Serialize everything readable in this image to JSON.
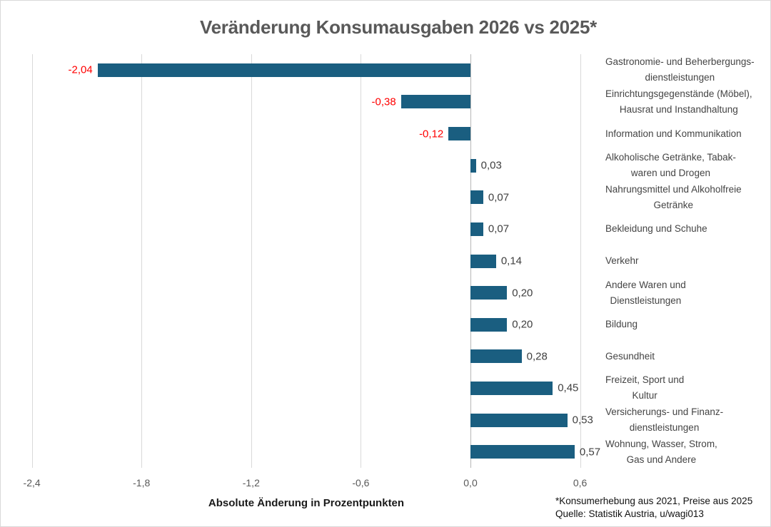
{
  "window": {
    "background": "#ffffff",
    "border_color": "#d9d9d9"
  },
  "chart_data": {
    "type": "bar",
    "orientation": "horizontal",
    "title": "Veränderung Konsumausgaben 2026 vs 2025*",
    "xlabel": "Absolute Änderung in Prozentpunkten",
    "xlim": [
      -2.4,
      0.72
    ],
    "x_ticks": [
      -2.4,
      -1.8,
      -1.2,
      -0.6,
      0.0,
      0.6
    ],
    "x_tick_labels": [
      "-2,4",
      "-1,8",
      "-1,2",
      "-0,6",
      "0,0",
      "0,6"
    ],
    "grid": true,
    "legend": "none",
    "categories": [
      "Gastronomie- und Beherbergungsdienstleistungen",
      "Einrichtungsgegenstände (Möbel), Hausrat und Instandhaltung",
      "Information und Kommunikation",
      "Alkoholische Getränke, Tabakwaren und Drogen",
      "Nahrungsmittel und Alkoholfreie Getränke",
      "Bekleidung und Schuhe",
      "Verkehr",
      "Andere Waren und Dienstleistungen",
      "Bildung",
      "Gesundheit",
      "Freizeit, Sport und Kultur",
      "Versicherungs- und Finanzdienstleistungen",
      "Wohnung, Wasser, Strom, Gas und Andere"
    ],
    "category_lines": [
      [
        "Gastronomie- und Beherbergungs-",
        "dienstleistungen"
      ],
      [
        "Einrichtungsgegenstände (Möbel),",
        "Hausrat und Instandhaltung"
      ],
      [
        "Information und Kommunikation"
      ],
      [
        "Alkoholische Getränke, Tabak-",
        "waren und Drogen"
      ],
      [
        "Nahrungsmittel und Alkoholfreie",
        "Getränke"
      ],
      [
        "Bekleidung und Schuhe"
      ],
      [
        "Verkehr"
      ],
      [
        "Andere Waren und",
        "Dienstleistungen"
      ],
      [
        "Bildung"
      ],
      [
        "Gesundheit"
      ],
      [
        "Freizeit, Sport und",
        "Kultur"
      ],
      [
        "Versicherungs- und Finanz-",
        "dienstleistungen"
      ],
      [
        "Wohnung, Wasser, Strom,",
        "Gas und Andere"
      ]
    ],
    "values": [
      -2.04,
      -0.38,
      -0.12,
      0.03,
      0.07,
      0.07,
      0.14,
      0.2,
      0.2,
      0.28,
      0.45,
      0.53,
      0.57
    ],
    "value_labels": [
      "-2,04",
      "-0,38",
      "-0,12",
      "0,03",
      "0,07",
      "0,07",
      "0,14",
      "0,20",
      "0,20",
      "0,28",
      "0,45",
      "0,53",
      "0,57"
    ],
    "bar_color": "#1a5e80",
    "negative_label_color": "#ff0000",
    "positive_label_color": "#3f3f3f",
    "gridline_color": "#d9d9d9",
    "zero_line_color": "#b7b7b7"
  },
  "footnote": {
    "line1": "*Konsumerhebung aus 2021, Preise aus 2025",
    "line2": "Quelle: Statistik Austria, u/wagi013"
  }
}
